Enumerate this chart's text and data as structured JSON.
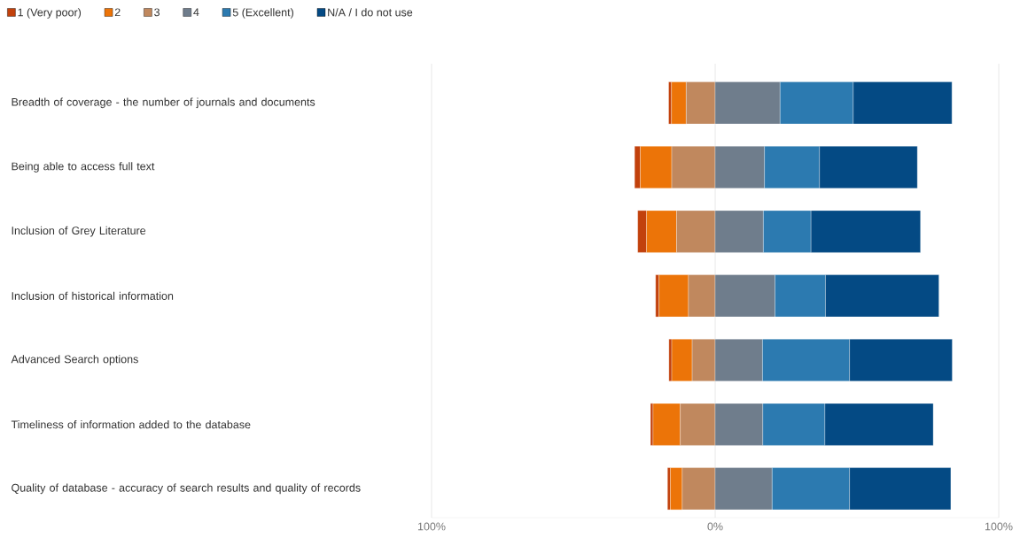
{
  "chart_data": {
    "type": "bar",
    "orientation": "horizontal",
    "stacked": true,
    "categories": [
      "Breadth of coverage - the number of journals and documents",
      "Being able to access full text",
      "Inclusion of Grey Literature",
      "Inclusion of historical information",
      "Advanced Search options",
      "Timeliness of information added to the database",
      "Quality of database - accuracy of search results and quality of records"
    ],
    "series": [
      {
        "name": "1 (Very poor)",
        "color": "#c2410c",
        "values": [
          -1.0,
          -2.0,
          -3.1,
          -1.2,
          -1.0,
          -0.9,
          -1.0
        ]
      },
      {
        "name": "2",
        "color": "#ec7408",
        "values": [
          -5.2,
          -11.1,
          -10.6,
          -10.4,
          -7.2,
          -9.6,
          -4.2
        ]
      },
      {
        "name": "3",
        "color": "#c0885e",
        "values": [
          -10.2,
          -15.3,
          -13.6,
          -9.4,
          -8.1,
          -12.3,
          -11.6
        ]
      },
      {
        "name": "4",
        "color": "#6f7d8c",
        "values": [
          22.9,
          17.4,
          17.0,
          21.1,
          16.7,
          16.8,
          20.1
        ]
      },
      {
        "name": "5 (Excellent)",
        "color": "#2c7ab0",
        "values": [
          25.8,
          19.4,
          16.8,
          17.8,
          30.7,
          21.9,
          27.3
        ]
      },
      {
        "name": "N/A / I do not use",
        "color": "#044a84",
        "values": [
          34.8,
          34.5,
          38.6,
          40.0,
          36.2,
          38.2,
          35.7
        ]
      }
    ],
    "xlim": [
      -100,
      100
    ],
    "xticks": [
      {
        "value": -100,
        "label": "100%"
      },
      {
        "value": 0,
        "label": "0%"
      },
      {
        "value": 100,
        "label": "100%"
      }
    ],
    "grid": "x",
    "legend": "top left"
  }
}
